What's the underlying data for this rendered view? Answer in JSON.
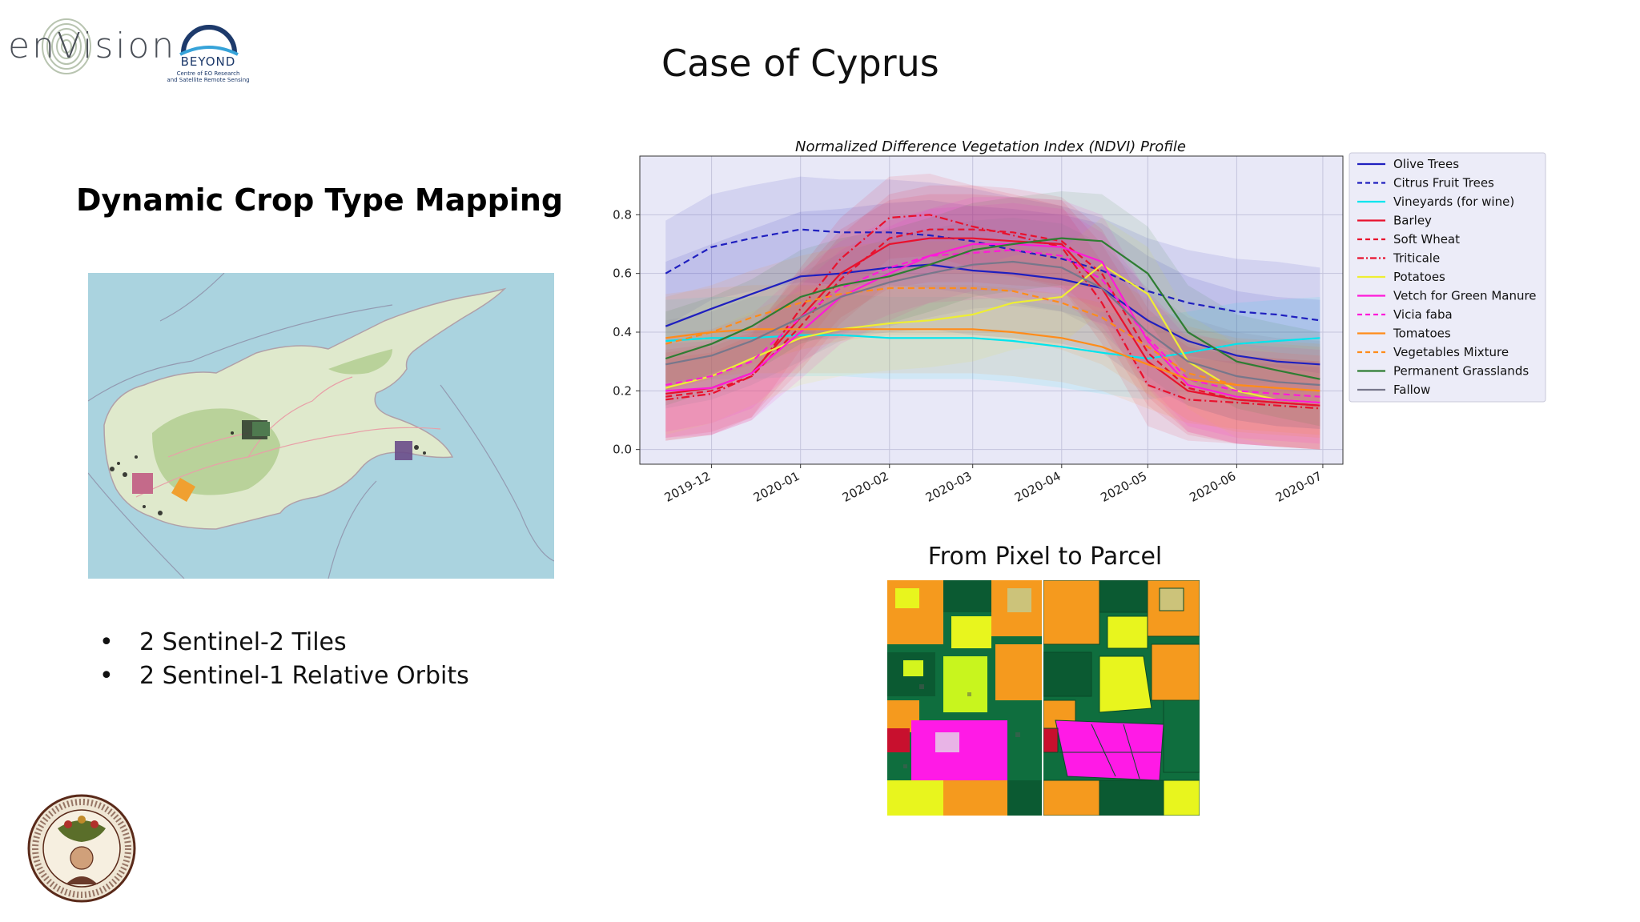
{
  "header": {
    "logo_envision_text": "enVision",
    "logo_beyond_name": "BEYOND",
    "logo_beyond_sub_1": "Centre of EO Research",
    "logo_beyond_sub_2": "and Satellite Remote Sensing",
    "title": "Case of Cyprus"
  },
  "left": {
    "heading": "Dynamic Crop Type Mapping",
    "bullets": [
      "2 Sentinel-2 Tiles",
      "2 Sentinel-1 Relative Orbits"
    ]
  },
  "parcel": {
    "title": "From Pixel to Parcel"
  },
  "seal": {
    "text": "ΚΥΠΡΙΑΚΟΣ ΟΡΓΑΝΙΣΜΟΣ ΑΓΡΟΤΙΚΩΝ ΠΛΗΡΩΜΩΝ · CYPRUS AGRICULTURAL PAYMENTS ORGANISATION"
  },
  "chart_data": {
    "type": "line",
    "title": "Normalized Difference Vegetation Index (NDVI) Profile",
    "xlabel": "",
    "ylabel": "",
    "ylim": [
      -0.05,
      1.0
    ],
    "yticks": [
      "0.0",
      "0.2",
      "0.4",
      "0.6",
      "0.8"
    ],
    "x_range": [
      "2019-11-06",
      "2020-07-08"
    ],
    "xticks": [
      "2019-12",
      "2020-01",
      "2020-02",
      "2020-03",
      "2020-04",
      "2020-05",
      "2020-06",
      "2020-07"
    ],
    "x": [
      "2019-11-15",
      "2019-12-01",
      "2019-12-15",
      "2020-01-01",
      "2020-01-15",
      "2020-02-01",
      "2020-02-15",
      "2020-03-01",
      "2020-03-15",
      "2020-04-01",
      "2020-04-15",
      "2020-05-01",
      "2020-05-15",
      "2020-06-01",
      "2020-06-15",
      "2020-06-30"
    ],
    "legend_position": "outside-right",
    "grid": true,
    "series": [
      {
        "name": "Olive Trees",
        "color": "#1f1fbf",
        "dash": "solid",
        "values": [
          0.42,
          0.48,
          0.53,
          0.59,
          0.6,
          0.62,
          0.63,
          0.61,
          0.6,
          0.58,
          0.55,
          0.44,
          0.37,
          0.32,
          0.3,
          0.29
        ],
        "band": 0.22
      },
      {
        "name": "Citrus Fruit Trees",
        "color": "#1f1fbf",
        "dash": "dashed",
        "values": [
          0.6,
          0.69,
          0.72,
          0.75,
          0.74,
          0.74,
          0.73,
          0.71,
          0.68,
          0.65,
          0.61,
          0.54,
          0.5,
          0.47,
          0.46,
          0.44
        ],
        "band": 0.18
      },
      {
        "name": "Vineyards (for wine)",
        "color": "#00e5ee",
        "dash": "solid",
        "values": [
          0.37,
          0.38,
          0.38,
          0.39,
          0.39,
          0.38,
          0.38,
          0.38,
          0.37,
          0.35,
          0.33,
          0.31,
          0.33,
          0.36,
          0.37,
          0.38
        ],
        "band": 0.14
      },
      {
        "name": "Barley",
        "color": "#e8112d",
        "dash": "solid",
        "values": [
          0.19,
          0.21,
          0.26,
          0.45,
          0.6,
          0.7,
          0.72,
          0.72,
          0.71,
          0.7,
          0.55,
          0.3,
          0.2,
          0.17,
          0.16,
          0.15
        ],
        "band": 0.15
      },
      {
        "name": "Soft Wheat",
        "color": "#e8112d",
        "dash": "dashed",
        "values": [
          0.18,
          0.2,
          0.25,
          0.42,
          0.58,
          0.72,
          0.75,
          0.75,
          0.74,
          0.71,
          0.6,
          0.33,
          0.21,
          0.17,
          0.16,
          0.15
        ],
        "band": 0.15
      },
      {
        "name": "Triticale",
        "color": "#e8112d",
        "dash": "dashdot",
        "values": [
          0.17,
          0.19,
          0.25,
          0.48,
          0.65,
          0.79,
          0.8,
          0.76,
          0.73,
          0.69,
          0.5,
          0.22,
          0.17,
          0.16,
          0.15,
          0.14
        ],
        "band": 0.14
      },
      {
        "name": "Potatoes",
        "color": "#eeee33",
        "dash": "solid",
        "values": [
          0.21,
          0.25,
          0.31,
          0.38,
          0.41,
          0.43,
          0.44,
          0.46,
          0.5,
          0.52,
          0.63,
          0.53,
          0.3,
          0.2,
          0.17,
          0.16
        ],
        "band": 0.16
      },
      {
        "name": "Vetch for Green Manure",
        "color": "#ff1ad9",
        "dash": "solid",
        "values": [
          0.2,
          0.21,
          0.26,
          0.4,
          0.52,
          0.6,
          0.66,
          0.7,
          0.7,
          0.69,
          0.64,
          0.37,
          0.22,
          0.18,
          0.17,
          0.16
        ],
        "band": 0.16
      },
      {
        "name": "Vicia faba",
        "color": "#ff1ad9",
        "dash": "dashed",
        "values": [
          0.22,
          0.25,
          0.3,
          0.45,
          0.55,
          0.62,
          0.66,
          0.67,
          0.68,
          0.66,
          0.58,
          0.38,
          0.24,
          0.2,
          0.19,
          0.18
        ],
        "band": 0.16
      },
      {
        "name": "Tomatoes",
        "color": "#ff8c1a",
        "dash": "solid",
        "values": [
          0.38,
          0.4,
          0.41,
          0.41,
          0.41,
          0.41,
          0.41,
          0.41,
          0.4,
          0.38,
          0.35,
          0.29,
          0.24,
          0.22,
          0.21,
          0.2
        ],
        "band": 0.15
      },
      {
        "name": "Vegetables Mixture",
        "color": "#ff8c1a",
        "dash": "dashed",
        "values": [
          0.36,
          0.4,
          0.45,
          0.5,
          0.53,
          0.55,
          0.55,
          0.55,
          0.54,
          0.5,
          0.45,
          0.35,
          0.26,
          0.22,
          0.21,
          0.2
        ],
        "band": 0.16
      },
      {
        "name": "Permanent Grasslands",
        "color": "#2e7d32",
        "dash": "solid",
        "values": [
          0.31,
          0.36,
          0.42,
          0.52,
          0.56,
          0.59,
          0.63,
          0.68,
          0.7,
          0.72,
          0.71,
          0.6,
          0.4,
          0.3,
          0.27,
          0.24
        ],
        "band": 0.16
      },
      {
        "name": "Fallow",
        "color": "#77778b",
        "dash": "solid",
        "values": [
          0.29,
          0.32,
          0.37,
          0.45,
          0.52,
          0.57,
          0.6,
          0.63,
          0.64,
          0.62,
          0.55,
          0.4,
          0.3,
          0.25,
          0.23,
          0.22
        ],
        "band": 0.15
      }
    ]
  }
}
